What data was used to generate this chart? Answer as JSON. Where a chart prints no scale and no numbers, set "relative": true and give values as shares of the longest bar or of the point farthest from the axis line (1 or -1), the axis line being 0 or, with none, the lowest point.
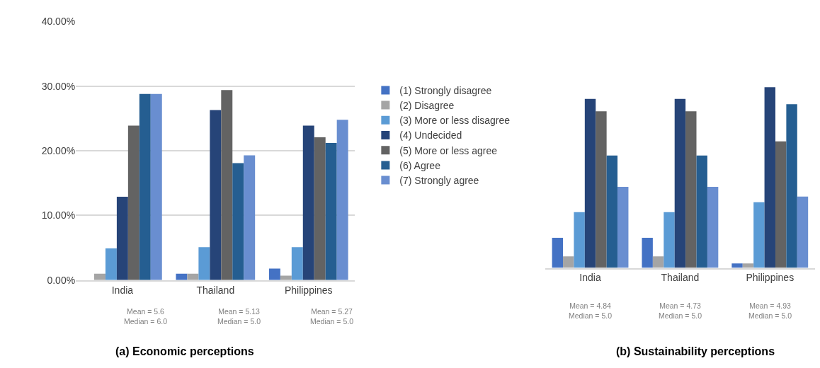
{
  "chart_data": [
    {
      "type": "bar",
      "title": "(a) Economic perceptions",
      "categories": [
        "India",
        "Thailand",
        "Philippines"
      ],
      "series": [
        {
          "name": "(1) Strongly disagree",
          "color": "#4472c4",
          "values": [
            0,
            1.0,
            1.8
          ]
        },
        {
          "name": "(2) Disagree",
          "color": "#a5a5a5",
          "values": [
            1.0,
            1.0,
            0.7
          ]
        },
        {
          "name": "(3) More or less disagree",
          "color": "#5b9bd5",
          "values": [
            4.9,
            5.1,
            5.1
          ]
        },
        {
          "name": "(4) Undecided",
          "color": "#264478",
          "values": [
            12.9,
            26.3,
            23.9
          ]
        },
        {
          "name": "(5) More or less agree",
          "color": "#636363",
          "values": [
            23.9,
            29.4,
            22.1
          ]
        },
        {
          "name": "(6) Agree",
          "color": "#255e91",
          "values": [
            28.8,
            18.1,
            21.2
          ]
        },
        {
          "name": "(7) Strongly agree",
          "color": "#698ed0",
          "values": [
            28.8,
            19.3,
            24.8
          ]
        }
      ],
      "ylim": [
        0,
        40
      ],
      "yticks": [
        {
          "value": 0,
          "label": "0.00%"
        },
        {
          "value": 10,
          "label": "10.00%"
        },
        {
          "value": 20,
          "label": "20.00%"
        },
        {
          "value": 30,
          "label": "30.00%"
        },
        {
          "value": 40,
          "label": "40.00%"
        }
      ],
      "grid": "y",
      "legend": "right",
      "annotations": [
        "Mean = 5.6\nMedian = 6.0",
        "Mean = 5.13\nMedian = 5.0",
        "Mean = 5.27\nMedian = 5.0"
      ]
    },
    {
      "type": "bar",
      "title": "(b) Sustainability perceptions",
      "categories": [
        "India",
        "Thailand",
        "Philippines"
      ],
      "relative": true,
      "series": [
        {
          "color": "#4472c4",
          "values": [
            0.167,
            0.167,
            0.025
          ]
        },
        {
          "color": "#a5a5a5",
          "values": [
            0.064,
            0.064,
            0.025
          ]
        },
        {
          "color": "#5b9bd5",
          "values": [
            0.309,
            0.309,
            0.364
          ]
        },
        {
          "color": "#264478",
          "values": [
            0.936,
            0.936,
            1
          ]
        },
        {
          "color": "#636363",
          "values": [
            0.867,
            0.867,
            0.701
          ]
        },
        {
          "color": "#255e91",
          "values": [
            0.622,
            0.622,
            0.906
          ]
        },
        {
          "color": "#698ed0",
          "values": [
            0.449,
            0.449,
            0.395
          ]
        }
      ],
      "annotations": [
        "Mean = 4.84\nMedian = 5.0",
        "Mean = 4.73\nMedian = 5.0",
        "Mean = 4.93\nMedian = 5.0"
      ]
    }
  ]
}
